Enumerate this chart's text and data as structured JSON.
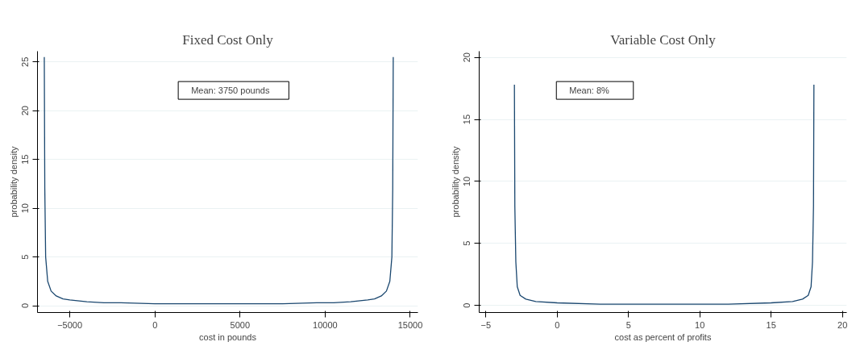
{
  "chart_data": [
    {
      "type": "line",
      "title": "Fixed Cost Only",
      "xlabel": "cost in pounds",
      "ylabel": "probability density",
      "annotations": [
        "Mean: 3750 pounds"
      ],
      "grid": "y",
      "x": [
        -6500,
        -6470,
        -6420,
        -6300,
        -6100,
        -5800,
        -5400,
        -5000,
        -4000,
        -3000,
        -2000,
        0,
        2000,
        3750,
        5500,
        7500,
        9500,
        10500,
        11500,
        12500,
        12900,
        13300,
        13600,
        13800,
        13920,
        13970,
        14000
      ],
      "series": [
        {
          "color": "#1a476f",
          "values": [
            25.5,
            12,
            5,
            2.5,
            1.5,
            1.0,
            0.7,
            0.6,
            0.4,
            0.3,
            0.3,
            0.2,
            0.2,
            0.2,
            0.2,
            0.2,
            0.3,
            0.3,
            0.4,
            0.6,
            0.7,
            1.0,
            1.5,
            2.5,
            5,
            12,
            25.5
          ]
        }
      ],
      "xlim": [
        -6900,
        15450
      ],
      "xticks": [
        -5000,
        0,
        5000,
        10000,
        15000
      ],
      "ylim": [
        -0.7,
        26.1
      ],
      "yticks": [
        0,
        5,
        10,
        15,
        20,
        25
      ]
    },
    {
      "type": "line",
      "title": "Variable Cost Only",
      "xlabel": "cost as percent of profits",
      "ylabel": "probability density",
      "annotations": [
        "Mean: 8%"
      ],
      "grid": "y",
      "x": [
        -3,
        -2.97,
        -2.9,
        -2.8,
        -2.6,
        -2.2,
        -1.5,
        0,
        3,
        7.5,
        12,
        15,
        16.5,
        17.2,
        17.6,
        17.8,
        17.9,
        17.97,
        18
      ],
      "series": [
        {
          "color": "#1a476f",
          "values": [
            17.8,
            8,
            3.5,
            1.5,
            0.8,
            0.5,
            0.3,
            0.2,
            0.1,
            0.1,
            0.1,
            0.2,
            0.3,
            0.5,
            0.8,
            1.5,
            3.5,
            8,
            17.8
          ]
        }
      ],
      "xlim": [
        -5.47,
        20.3
      ],
      "xticks": [
        -5,
        0,
        5,
        10,
        15,
        20
      ],
      "ylim": [
        -0.58,
        20.5
      ],
      "yticks": [
        0,
        5,
        10,
        15,
        20
      ]
    }
  ]
}
